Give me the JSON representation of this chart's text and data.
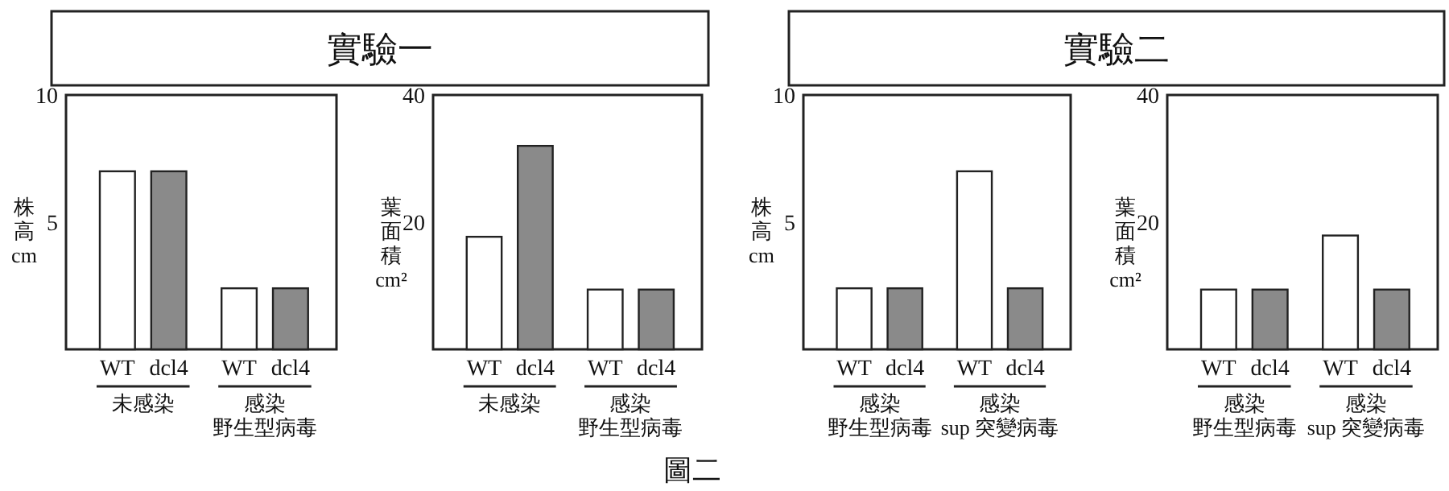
{
  "chart_data": [
    {
      "type": "bar",
      "title": "實驗一",
      "categories": [
        "WT",
        "dcl4",
        "WT",
        "dcl4"
      ],
      "values": [
        7,
        7,
        2.4,
        2.4
      ],
      "colors": [
        "#ffffff",
        "#8a8a8a",
        "#ffffff",
        "#8a8a8a"
      ],
      "ylabel": "株高 cm",
      "ylim": [
        0,
        10
      ],
      "yticks": [
        5,
        10
      ],
      "annotations": [
        "未感染",
        "感染野生型病毒"
      ]
    },
    {
      "type": "bar",
      "categories": [
        "WT",
        "dcl4",
        "WT",
        "dcl4"
      ],
      "values": [
        17.7,
        32,
        9.4,
        9.4
      ],
      "colors": [
        "#ffffff",
        "#8a8a8a",
        "#ffffff",
        "#8a8a8a"
      ],
      "ylabel": "葉面積 cm²",
      "ylim": [
        0,
        40
      ],
      "yticks": [
        20,
        40
      ],
      "annotations": [
        "未感染",
        "感染野生型病毒"
      ]
    },
    {
      "type": "bar",
      "title": "實驗二",
      "categories": [
        "WT",
        "dcl4",
        "WT",
        "dcl4"
      ],
      "values": [
        2.4,
        2.4,
        7,
        2.4
      ],
      "colors": [
        "#ffffff",
        "#8a8a8a",
        "#ffffff",
        "#8a8a8a"
      ],
      "ylabel": "株高 cm",
      "ylim": [
        0,
        10
      ],
      "yticks": [
        5,
        10
      ],
      "annotations": [
        "感染野生型病毒",
        "感染sup 突變病毒"
      ]
    },
    {
      "type": "bar",
      "categories": [
        "WT",
        "dcl4",
        "WT",
        "dcl4"
      ],
      "values": [
        9.4,
        9.4,
        17.9,
        9.4
      ],
      "colors": [
        "#ffffff",
        "#8a8a8a",
        "#ffffff",
        "#8a8a8a"
      ],
      "ylabel": "葉面積 cm²",
      "ylim": [
        0,
        40
      ],
      "yticks": [
        20,
        40
      ],
      "annotations": [
        "感染野生型病毒",
        "感染sup 突變病毒",
        "圖二"
      ]
    }
  ]
}
